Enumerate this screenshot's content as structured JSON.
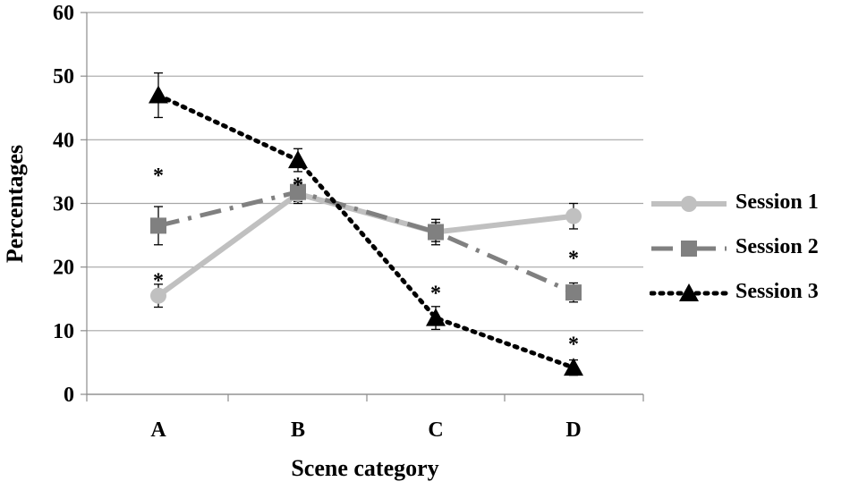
{
  "chart_data": {
    "type": "line",
    "xlabel": "Scene category",
    "ylabel": "Percentages",
    "categories": [
      "A",
      "B",
      "C",
      "D"
    ],
    "ylim": [
      0,
      60
    ],
    "yticks": [
      0,
      10,
      20,
      30,
      40,
      50,
      60
    ],
    "grid": true,
    "legend_position": "right",
    "series": [
      {
        "name": "Session 1",
        "values": [
          15.5,
          31.5,
          25.5,
          28.0
        ],
        "errors": [
          1.8,
          1.5,
          1.5,
          2.0
        ],
        "color": "#c0c0c0",
        "line_style": "solid",
        "marker": "circle"
      },
      {
        "name": "Session 2",
        "values": [
          26.5,
          31.8,
          25.5,
          16.0
        ],
        "errors": [
          3.0,
          1.5,
          2.0,
          1.5
        ],
        "color": "#808080",
        "line_style": "dash-dot",
        "marker": "square"
      },
      {
        "name": "Session 3",
        "values": [
          47.0,
          36.8,
          12.0,
          4.2
        ],
        "errors": [
          3.5,
          1.8,
          1.8,
          1.2
        ],
        "color": "#000000",
        "line_style": "dotted",
        "marker": "triangle"
      }
    ],
    "annotations": [
      {
        "text": "*",
        "category": "A",
        "y": 35
      },
      {
        "text": "*",
        "category": "A",
        "y": 18.5
      },
      {
        "text": "*",
        "category": "B",
        "y": 33.5
      },
      {
        "text": "*",
        "category": "C",
        "y": 16.5
      },
      {
        "text": "*",
        "category": "D",
        "y": 22
      },
      {
        "text": "*",
        "category": "D",
        "y": 8.5
      }
    ]
  }
}
